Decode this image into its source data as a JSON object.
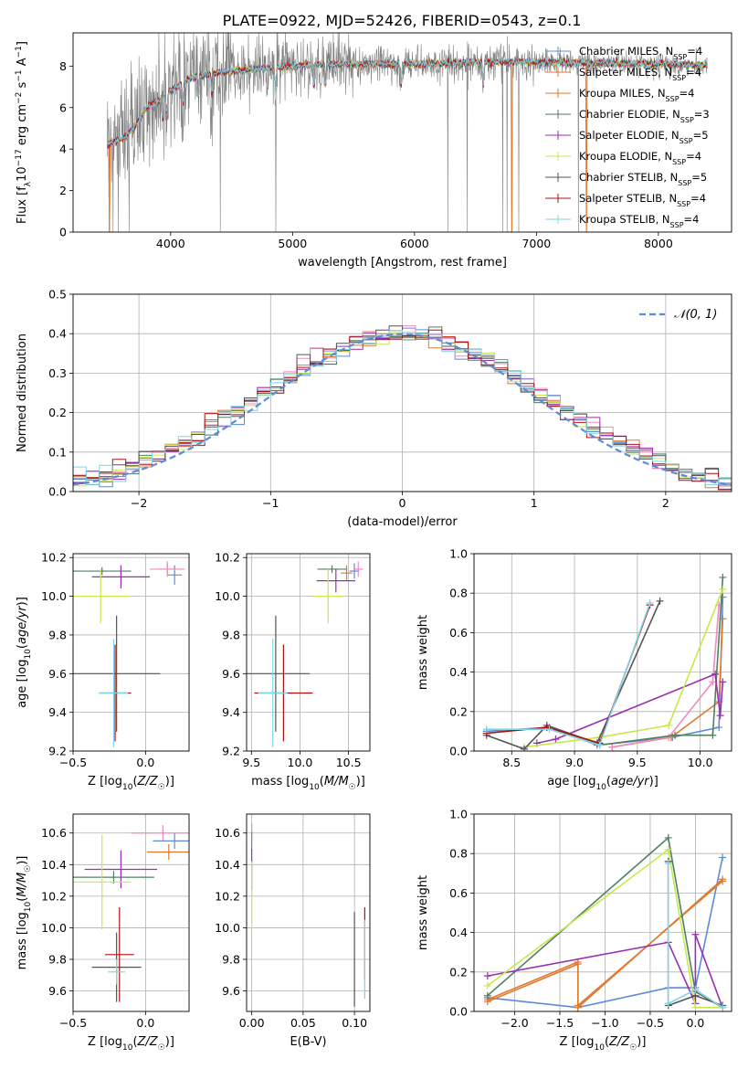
{
  "figure_title": "PLATE=0922, MJD=52426, FIBERID=0543, z=0.1",
  "colors": {
    "spectrum": "#808080",
    "grid": "#b0b0b0",
    "normal_curve": "#5b8bd9",
    "series": {
      "chabrier_miles": "#5b8bd9",
      "salpeter_miles": "#e07a30",
      "kroupa_miles": "#e07a30",
      "chabrier_elodie": "#4f7f5f",
      "salpeter_elodie": "#9a2fb0",
      "kroupa_elodie": "#c7e84a",
      "chabrier_stelib": "#555555",
      "salpeter_stelib": "#b01010",
      "kroupa_stelib": "#7fd4e6",
      "pink": "#f08ac0"
    }
  },
  "chart_data": [
    {
      "id": "spectrum",
      "type": "line",
      "xlabel": "wavelength [Angstrom, rest frame]",
      "ylabel": "Flux [f_λ 10^-17 erg cm^-2 s^-1 A^-1]",
      "xlim": [
        3200,
        8600
      ],
      "ylim": [
        0,
        9.6
      ],
      "xticks": [
        4000,
        5000,
        6000,
        7000,
        8000
      ],
      "yticks": [
        0,
        2,
        4,
        6,
        8
      ],
      "grid": false,
      "legend_position": "upper-right",
      "legend": [
        {
          "label": "Chabrier MILES, N",
          "sub": "SSP",
          "eq": "=4",
          "key": "chabrier_miles"
        },
        {
          "label": "Salpeter MILES, N",
          "sub": "SSP",
          "eq": "=4",
          "key": "salpeter_miles"
        },
        {
          "label": "Kroupa MILES, N",
          "sub": "SSP",
          "eq": "=4",
          "key": "kroupa_miles"
        },
        {
          "label": "Chabrier ELODIE, N",
          "sub": "SSP",
          "eq": "=3",
          "key": "chabrier_elodie"
        },
        {
          "label": "Salpeter ELODIE, N",
          "sub": "SSP",
          "eq": "=5",
          "key": "salpeter_elodie"
        },
        {
          "label": "Kroupa ELODIE, N",
          "sub": "SSP",
          "eq": "=4",
          "key": "kroupa_elodie"
        },
        {
          "label": "Chabrier STELIB, N",
          "sub": "SSP",
          "eq": "=5",
          "key": "chabrier_stelib"
        },
        {
          "label": "Salpeter STELIB, N",
          "sub": "SSP",
          "eq": "=4",
          "key": "salpeter_stelib"
        },
        {
          "label": "Kroupa STELIB, N",
          "sub": "SSP",
          "eq": "=4",
          "key": "kroupa_stelib"
        }
      ],
      "continuum_x": [
        3480,
        3600,
        3700,
        3800,
        3900,
        4000,
        4100,
        4200,
        4400,
        4600,
        4800,
        5000,
        5200,
        5500,
        6000,
        6500,
        7000,
        7400,
        8000,
        8400
      ],
      "continuum_y": [
        4.2,
        4.5,
        5.0,
        6.0,
        6.3,
        6.8,
        7.2,
        7.5,
        7.7,
        7.8,
        7.9,
        8.0,
        8.1,
        8.1,
        8.1,
        8.2,
        8.2,
        8.15,
        8.1,
        8.05
      ],
      "absorption_lines": [
        3934,
        3968,
        4102,
        4227,
        4340,
        4861,
        5175,
        5270,
        5890,
        6563
      ]
    },
    {
      "id": "residuals",
      "type": "step-histogram",
      "xlabel": "(data-model)/error",
      "ylabel": "Normed distribution",
      "xlim": [
        -2.5,
        2.5
      ],
      "ylim": [
        0,
        0.5
      ],
      "xticks": [
        -2,
        -1,
        0,
        1,
        2
      ],
      "yticks": [
        0.0,
        0.1,
        0.2,
        0.3,
        0.4,
        0.5
      ],
      "grid": true,
      "legend_position": "upper-right",
      "legend": [
        {
          "label": "𝒩(0, 1)",
          "key": "normal_curve"
        }
      ],
      "bin_width": 0.1
    },
    {
      "id": "z_age",
      "type": "errorbar",
      "xlabel": "Z [log10(Z/Z☉)]",
      "ylabel": "age  [log10(age/yr)]",
      "xlim": [
        -0.5,
        0.3
      ],
      "ylim": [
        9.2,
        10.22
      ],
      "xticks": [
        -0.5,
        0.0
      ],
      "yticks": [
        9.2,
        9.4,
        9.6,
        9.8,
        10.0,
        10.2
      ],
      "grid": true,
      "points": [
        {
          "key": "chabrier_miles",
          "x": 0.2,
          "xerr": 0.05,
          "y": 10.11,
          "yerr": 0.05
        },
        {
          "key": "salpeter_miles",
          "x": 0.15,
          "xerr": 0.06,
          "y": 10.14,
          "yerr": 0.03
        },
        {
          "key": "pink",
          "x": 0.15,
          "xerr": 0.12,
          "y": 10.14,
          "yerr": 0.04
        },
        {
          "key": "chabrier_elodie",
          "x": -0.3,
          "xerr": 0.2,
          "y": 10.13,
          "yerr": 0.02
        },
        {
          "key": "salpeter_elodie",
          "x": -0.17,
          "xerr": 0.2,
          "y": 10.1,
          "yerr": 0.06
        },
        {
          "key": "kroupa_elodie",
          "x": -0.31,
          "xerr": 0.2,
          "y": 10.0,
          "yerr": 0.14
        },
        {
          "key": "chabrier_stelib",
          "x": -0.2,
          "xerr": 0.3,
          "y": 9.6,
          "yerr": 0.3
        },
        {
          "key": "salpeter_stelib",
          "x": -0.21,
          "xerr": 0.11,
          "y": 9.5,
          "yerr": 0.25
        },
        {
          "key": "kroupa_stelib",
          "x": -0.22,
          "xerr": 0.1,
          "y": 9.5,
          "yerr": 0.28
        }
      ]
    },
    {
      "id": "mass_age",
      "type": "errorbar",
      "xlabel": "mass [log10(M/M☉)]",
      "ylabel": "",
      "xlim": [
        9.45,
        10.72
      ],
      "ylim": [
        9.2,
        10.22
      ],
      "xticks": [
        9.5,
        10.0,
        10.5
      ],
      "yticks": [
        9.2,
        9.4,
        9.6,
        9.8,
        10.0,
        10.2
      ],
      "grid": true,
      "points": [
        {
          "key": "chabrier_miles",
          "x": 10.56,
          "xerr": 0.05,
          "y": 10.13,
          "yerr": 0.04
        },
        {
          "key": "salpeter_miles",
          "x": 10.48,
          "xerr": 0.06,
          "y": 10.12,
          "yerr": 0.04
        },
        {
          "key": "pink",
          "x": 10.6,
          "xerr": 0.05,
          "y": 10.14,
          "yerr": 0.04
        },
        {
          "key": "chabrier_elodie",
          "x": 10.33,
          "xerr": 0.15,
          "y": 10.14,
          "yerr": 0.02
        },
        {
          "key": "salpeter_elodie",
          "x": 10.37,
          "xerr": 0.2,
          "y": 10.08,
          "yerr": 0.06
        },
        {
          "key": "kroupa_elodie",
          "x": 10.29,
          "xerr": 0.15,
          "y": 10.0,
          "yerr": 0.14
        },
        {
          "key": "chabrier_stelib",
          "x": 9.75,
          "xerr": 0.35,
          "y": 9.6,
          "yerr": 0.3
        },
        {
          "key": "salpeter_stelib",
          "x": 9.83,
          "xerr": 0.3,
          "y": 9.5,
          "yerr": 0.25
        },
        {
          "key": "kroupa_stelib",
          "x": 9.72,
          "xerr": 0.15,
          "y": 9.5,
          "yerr": 0.28
        }
      ]
    },
    {
      "id": "age_weight",
      "type": "line",
      "xlabel": "age  [log10(age/yr)]",
      "ylabel": "mass weight",
      "xlim": [
        8.2,
        10.25
      ],
      "ylim": [
        0,
        1.0
      ],
      "xticks": [
        8.5,
        9.0,
        9.5,
        10.0
      ],
      "yticks": [
        0.0,
        0.2,
        0.4,
        0.6,
        0.8,
        1.0
      ],
      "grid": true,
      "series": [
        {
          "key": "chabrier_miles",
          "x": [
            8.3,
            8.8,
            9.18,
            9.78,
            10.15,
            10.18
          ],
          "y": [
            0.1,
            0.12,
            0.03,
            0.07,
            0.12,
            0.78
          ]
        },
        {
          "key": "salpeter_miles",
          "x": [
            9.3,
            9.77,
            10.15,
            10.18
          ],
          "y": [
            0.02,
            0.07,
            0.25,
            0.67
          ]
        },
        {
          "key": "pink",
          "x": [
            9.3,
            9.75,
            10.1,
            10.15
          ],
          "y": [
            0.02,
            0.07,
            0.35,
            0.74
          ]
        },
        {
          "key": "chabrier_elodie",
          "x": [
            9.2,
            9.8,
            10.1,
            10.18
          ],
          "y": [
            0.03,
            0.08,
            0.08,
            0.88
          ]
        },
        {
          "key": "salpeter_elodie",
          "x": [
            8.7,
            8.85,
            10.12,
            10.16,
            10.18
          ],
          "y": [
            0.04,
            0.06,
            0.39,
            0.18,
            0.35
          ]
        },
        {
          "key": "kroupa_elodie",
          "x": [
            8.6,
            9.2,
            9.75,
            10.18
          ],
          "y": [
            0.02,
            0.07,
            0.13,
            0.82
          ]
        },
        {
          "key": "chabrier_stelib",
          "x": [
            8.3,
            8.6,
            8.78,
            9.18,
            9.68
          ],
          "y": [
            0.08,
            0.01,
            0.13,
            0.04,
            0.76
          ]
        },
        {
          "key": "salpeter_stelib",
          "x": [
            8.3,
            8.78,
            9.2,
            9.6
          ],
          "y": [
            0.09,
            0.12,
            0.04,
            0.74
          ]
        },
        {
          "key": "kroupa_stelib",
          "x": [
            8.3,
            8.8,
            9.2,
            9.6
          ],
          "y": [
            0.11,
            0.11,
            0.03,
            0.75
          ]
        }
      ]
    },
    {
      "id": "z_mass",
      "type": "errorbar",
      "xlabel": "Z [log10(Z/Z☉)]",
      "ylabel": "mass [log10(M/M☉)]",
      "xlim": [
        -0.5,
        0.3
      ],
      "ylim": [
        9.47,
        10.72
      ],
      "xticks": [
        -0.5,
        0.0
      ],
      "yticks": [
        9.6,
        9.8,
        10.0,
        10.2,
        10.4,
        10.6
      ],
      "grid": true,
      "points": [
        {
          "key": "chabrier_miles",
          "x": 0.2,
          "xerr": 0.15,
          "y": 10.55,
          "yerr": 0.05
        },
        {
          "key": "salpeter_miles",
          "x": 0.16,
          "xerr": 0.15,
          "y": 10.48,
          "yerr": 0.05
        },
        {
          "key": "pink",
          "x": 0.12,
          "xerr": 0.22,
          "y": 10.6,
          "yerr": 0.05
        },
        {
          "key": "chabrier_elodie",
          "x": -0.22,
          "xerr": 0.28,
          "y": 10.32,
          "yerr": 0.04
        },
        {
          "key": "salpeter_elodie",
          "x": -0.17,
          "xerr": 0.25,
          "y": 10.37,
          "yerr": 0.12
        },
        {
          "key": "kroupa_elodie",
          "x": -0.3,
          "xerr": 0.2,
          "y": 10.29,
          "yerr": 0.3
        },
        {
          "key": "chabrier_stelib",
          "x": -0.2,
          "xerr": 0.17,
          "y": 9.75,
          "yerr": 0.22
        },
        {
          "key": "salpeter_stelib",
          "x": -0.18,
          "xerr": 0.1,
          "y": 9.83,
          "yerr": 0.3
        },
        {
          "key": "kroupa_stelib",
          "x": -0.2,
          "xerr": 0.06,
          "y": 9.72,
          "yerr": 0.08
        }
      ]
    },
    {
      "id": "ebv_mass",
      "type": "errorbar",
      "xlabel": "E(B-V)",
      "ylabel": "",
      "xlim": [
        -0.005,
        0.115
      ],
      "ylim": [
        9.47,
        10.72
      ],
      "xticks": [
        0.0,
        0.05,
        0.1
      ],
      "yticks": [
        9.6,
        9.8,
        10.0,
        10.2,
        10.4,
        10.6
      ],
      "grid": true,
      "points": [
        {
          "key": "pink",
          "x": 0.0,
          "xerr": 0.0,
          "y": 10.6,
          "yerr": 0.06
        },
        {
          "key": "chabrier_miles",
          "x": 0.0,
          "xerr": 0.0,
          "y": 10.55,
          "yerr": 0.06
        },
        {
          "key": "salpeter_elodie",
          "x": 0.0,
          "xerr": 0.0,
          "y": 10.37,
          "yerr": 0.13
        },
        {
          "key": "kroupa_elodie",
          "x": 0.0,
          "xerr": 0.0,
          "y": 10.2,
          "yerr": 0.22
        },
        {
          "key": "chabrier_stelib",
          "x": 0.1,
          "xerr": 0.0,
          "y": 9.8,
          "yerr": 0.3
        },
        {
          "key": "salpeter_stelib",
          "x": 0.11,
          "xerr": 0.0,
          "y": 9.9,
          "yerr": 0.23
        },
        {
          "key": "kroupa_stelib",
          "x": 0.11,
          "xerr": 0.0,
          "y": 9.8,
          "yerr": 0.25
        }
      ]
    },
    {
      "id": "z_weight",
      "type": "line",
      "xlabel": "Z [log10(Z/Z☉)]",
      "ylabel": "mass weight",
      "xlim": [
        -2.45,
        0.4
      ],
      "ylim": [
        0,
        1.0
      ],
      "xticks": [
        -2.0,
        -1.5,
        -1.0,
        -0.5,
        0.0
      ],
      "yticks": [
        0.0,
        0.2,
        0.4,
        0.6,
        0.8,
        1.0
      ],
      "grid": true,
      "series": [
        {
          "key": "chabrier_miles",
          "x": [
            -2.3,
            -1.3,
            -0.3,
            0.0,
            0.3
          ],
          "y": [
            0.07,
            0.02,
            0.12,
            0.12,
            0.78
          ]
        },
        {
          "key": "salpeter_miles",
          "x": [
            -2.3,
            -1.3,
            -1.3,
            0.3
          ],
          "y": [
            0.06,
            0.25,
            0.02,
            0.67
          ]
        },
        {
          "key": "salpeter_miles",
          "x": [
            -2.3,
            -1.3,
            -1.3,
            0.3
          ],
          "y": [
            0.05,
            0.24,
            0.03,
            0.66
          ]
        },
        {
          "key": "chabrier_elodie",
          "x": [
            -2.3,
            -0.3,
            0.0,
            0.3
          ],
          "y": [
            0.08,
            0.88,
            0.1,
            0.02
          ]
        },
        {
          "key": "salpeter_elodie",
          "x": [
            -2.3,
            -0.3,
            0.0,
            0.0,
            0.3
          ],
          "y": [
            0.18,
            0.35,
            0.04,
            0.39,
            0.02
          ]
        },
        {
          "key": "kroupa_elodie",
          "x": [
            -2.3,
            -0.3,
            0.0,
            0.3
          ],
          "y": [
            0.13,
            0.82,
            0.02,
            0.02
          ]
        },
        {
          "key": "chabrier_stelib",
          "x": [
            -0.3,
            -0.3,
            0.0,
            0.3
          ],
          "y": [
            0.76,
            0.03,
            0.08,
            0.03
          ]
        },
        {
          "key": "kroupa_stelib",
          "x": [
            -0.3,
            -0.3,
            0.0,
            0.3
          ],
          "y": [
            0.75,
            0.04,
            0.11,
            0.02
          ]
        }
      ]
    }
  ]
}
